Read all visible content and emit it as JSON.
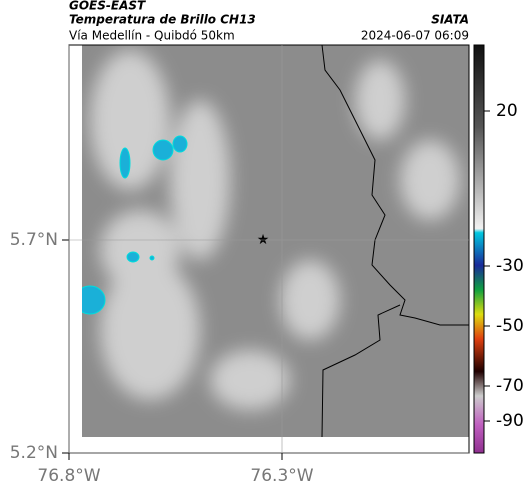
{
  "header": {
    "title": "GOES-EAST",
    "subtitle": "Temperatura de Brillo CH13",
    "region": "Vía Medellín - Quibdó 50km",
    "source": "SIATA",
    "timestamp": "2024-06-07 06:09"
  },
  "map": {
    "lat_ticks": [
      {
        "value": 5.7,
        "label": "5.7°N"
      },
      {
        "value": 5.2,
        "label": "5.2°N"
      }
    ],
    "lon_ticks": [
      {
        "value": -76.8,
        "label": "76.8°W"
      },
      {
        "value": -76.3,
        "label": "76.3°W"
      }
    ]
  },
  "colorbar": {
    "ticks": [
      20,
      -30,
      -50,
      -70,
      -90
    ]
  }
}
